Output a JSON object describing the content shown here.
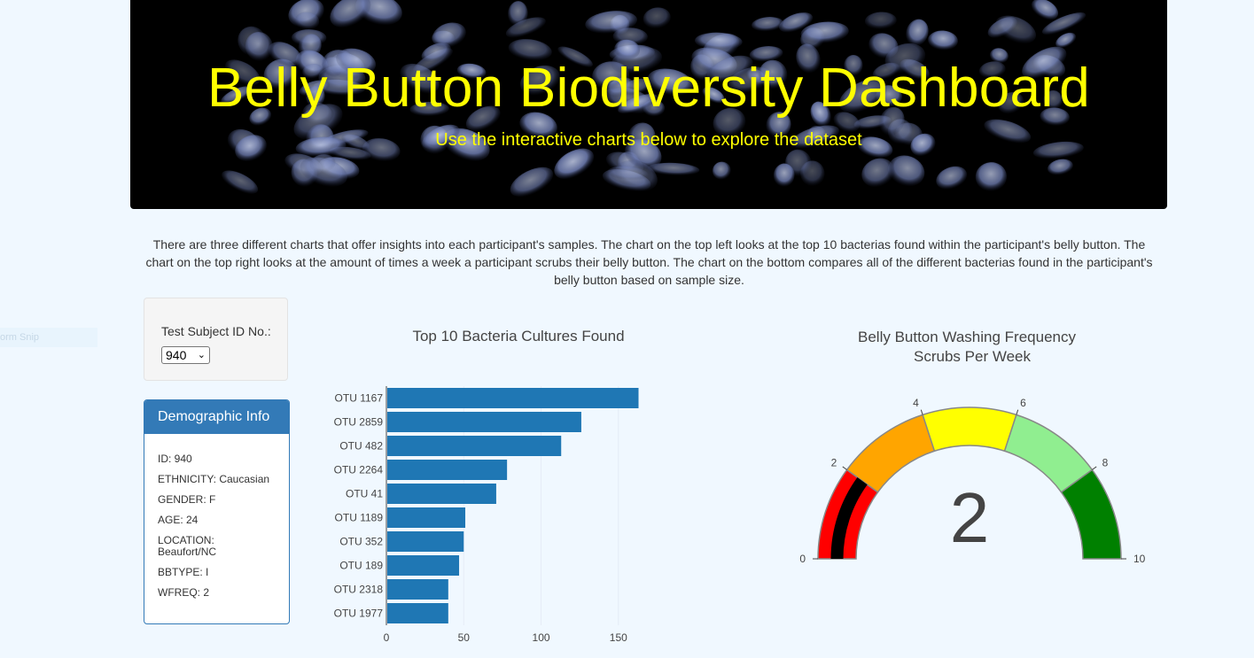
{
  "ghost_text": "orm Snip",
  "header": {
    "title": "Belly Button Biodiversity Dashboard",
    "subtitle": "Use the interactive charts below to explore the dataset"
  },
  "intro_text": "There are three different charts that offer insights into each participant's samples. The chart on the top left looks at the top 10 bacterias found within the participant's belly button. The chart on the top right looks at the amount of times a week a participant scrubs their belly button. The chart on the bottom compares all of the different bacterias found in the participant's belly button based on sample size.",
  "selector": {
    "label": "Test Subject ID No.:",
    "selected": "940"
  },
  "demographics": {
    "title": "Demographic Info",
    "rows": [
      "ID: 940",
      "ETHNICITY: Caucasian",
      "GENDER: F",
      "AGE: 24",
      "LOCATION: Beaufort/NC",
      "BBTYPE: I",
      "WFREQ: 2"
    ]
  },
  "colors": {
    "bar": "#1f77b4",
    "title_text": "#ffff00",
    "panel_header": "#337ab7",
    "gauge_steps": [
      "#ff0000",
      "#ffa500",
      "#ffff00",
      "#90ee90",
      "#008000"
    ],
    "gauge_bar": "#000000"
  },
  "chart_data": [
    {
      "type": "bar",
      "orientation": "horizontal",
      "title": "Top 10 Bacteria Cultures Found",
      "categories": [
        "OTU 1167",
        "OTU 2859",
        "OTU 482",
        "OTU 2264",
        "OTU 41",
        "OTU 1189",
        "OTU 352",
        "OTU 189",
        "OTU 2318",
        "OTU 1977"
      ],
      "values": [
        163,
        126,
        113,
        78,
        71,
        51,
        50,
        47,
        40,
        40
      ],
      "xlim": [
        0,
        165
      ],
      "xticks": [
        0,
        50,
        100,
        150
      ],
      "grid": true
    },
    {
      "type": "gauge",
      "title": "Belly Button Washing Frequency",
      "subtitle": "Scrubs Per Week",
      "value": 2,
      "range": [
        0,
        10
      ],
      "ticks": [
        0,
        2,
        4,
        6,
        8,
        10
      ],
      "steps": [
        [
          0,
          2
        ],
        [
          2,
          4
        ],
        [
          4,
          6
        ],
        [
          6,
          8
        ],
        [
          8,
          10
        ]
      ]
    }
  ]
}
